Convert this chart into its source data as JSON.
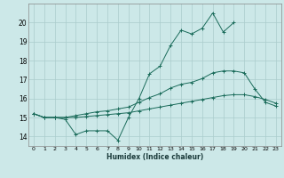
{
  "xlabel": "Humidex (Indice chaleur)",
  "x": [
    0,
    1,
    2,
    3,
    4,
    5,
    6,
    7,
    8,
    9,
    10,
    11,
    12,
    13,
    14,
    15,
    16,
    17,
    18,
    19,
    20,
    21,
    22,
    23
  ],
  "y_jagged": [
    15.2,
    15.0,
    15.0,
    14.9,
    14.1,
    14.3,
    14.3,
    14.3,
    13.8,
    15.0,
    16.0,
    17.3,
    17.7,
    18.8,
    19.6,
    19.4,
    19.7,
    20.5,
    19.5,
    20.0,
    null,
    null,
    null,
    null
  ],
  "y_mid": [
    15.2,
    15.0,
    15.0,
    15.0,
    15.1,
    15.2,
    15.3,
    15.35,
    15.45,
    15.55,
    15.8,
    16.05,
    16.25,
    16.55,
    16.75,
    16.85,
    17.05,
    17.35,
    17.45,
    17.45,
    17.35,
    16.5,
    15.8,
    15.6
  ],
  "y_flat": [
    15.2,
    15.0,
    15.0,
    15.0,
    15.0,
    15.05,
    15.1,
    15.15,
    15.2,
    15.25,
    15.35,
    15.45,
    15.55,
    15.65,
    15.75,
    15.85,
    15.95,
    16.05,
    16.15,
    16.2,
    16.2,
    16.1,
    15.95,
    15.75
  ],
  "bg_color": "#cce8e8",
  "grid_color": "#aacccc",
  "line_color": "#1a6b5a",
  "ylim": [
    13.5,
    21.0
  ],
  "yticks": [
    14,
    15,
    16,
    17,
    18,
    19,
    20
  ],
  "xticks": [
    0,
    1,
    2,
    3,
    4,
    5,
    6,
    7,
    8,
    9,
    10,
    11,
    12,
    13,
    14,
    15,
    16,
    17,
    18,
    19,
    20,
    21,
    22,
    23
  ]
}
